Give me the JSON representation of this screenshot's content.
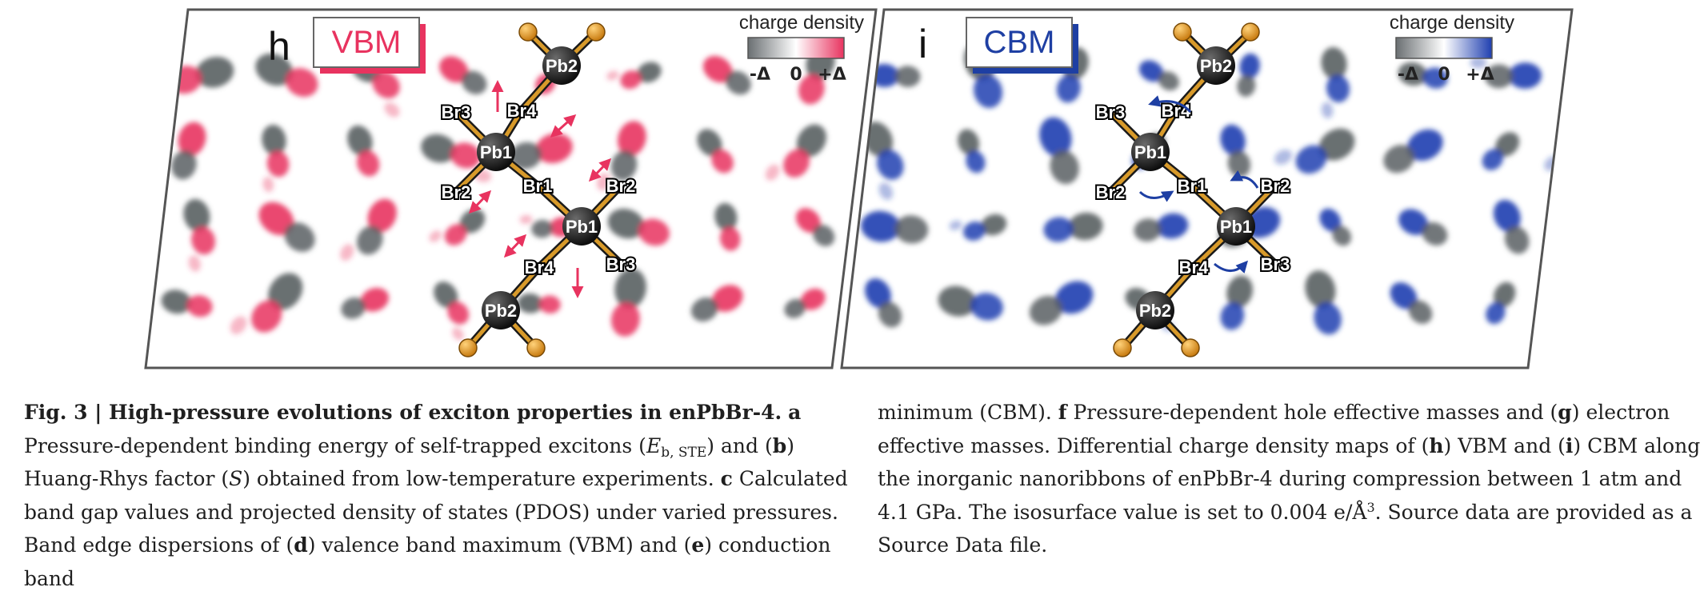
{
  "panel_h": {
    "letter": "h",
    "badge": "VBM",
    "badge_color": "#e8335f",
    "legend_title": "charge density",
    "legend_ticks": [
      "-Δ",
      "0",
      "+Δ"
    ],
    "lobe_color": "#e8335f",
    "neutral_color": "#5a5f63",
    "atoms": [
      "Pb2",
      "Br3",
      "Br4",
      "Pb1",
      "Br1",
      "Br2",
      "Br2",
      "Pb1",
      "Br4",
      "Br3",
      "Pb2"
    ]
  },
  "panel_i": {
    "letter": "i",
    "badge": "CBM",
    "badge_color": "#1e3fa3",
    "legend_title": "charge density",
    "legend_ticks": [
      "-Δ",
      "0",
      "+Δ"
    ],
    "lobe_color": "#1f3fb0",
    "neutral_color": "#5a5f63",
    "atoms": [
      "Pb2",
      "Br3",
      "Br4",
      "Pb1",
      "Br1",
      "Br2",
      "Br2",
      "Pb1",
      "Br4",
      "Br3",
      "Pb2"
    ]
  },
  "caption_left": {
    "fig": "Fig. 3",
    "sep": " | ",
    "title": "High-pressure evolutions of exciton properties in enPbBr-4.",
    "a": "a",
    "t1": " Pressure-dependent binding energy of self-trapped excitons (",
    "E": "E",
    "Esub": "b, STE",
    "t2": ") and (",
    "b": "b",
    "t3": ") Huang-Rhys factor (",
    "S": "S",
    "t4": ") obtained from low-temperature experiments. ",
    "c": "c",
    "t5": " Calculated band gap values and projected density of states (PDOS) under varied pressures. Band edge dispersions of (",
    "d": "d",
    "t6": ") valence band maximum (VBM) and (",
    "e": "e",
    "t7": ") conduction band"
  },
  "caption_right": {
    "t1": "minimum (CBM). ",
    "f": "f",
    "t2": " Pressure-dependent hole effective masses and (",
    "g": "g",
    "t3": ") electron effective masses. Differential charge density maps of (",
    "h": "h",
    "t4": ") VBM and (",
    "i": "i",
    "t5": ") CBM along the inorganic nanoribbons of enPbBr-4 during compression between 1 atm and 4.1 GPa. The isosurface value is set to 0.004 e/Å",
    "sup": "3",
    "t6": ". Source data are provided as a Source Data file."
  }
}
